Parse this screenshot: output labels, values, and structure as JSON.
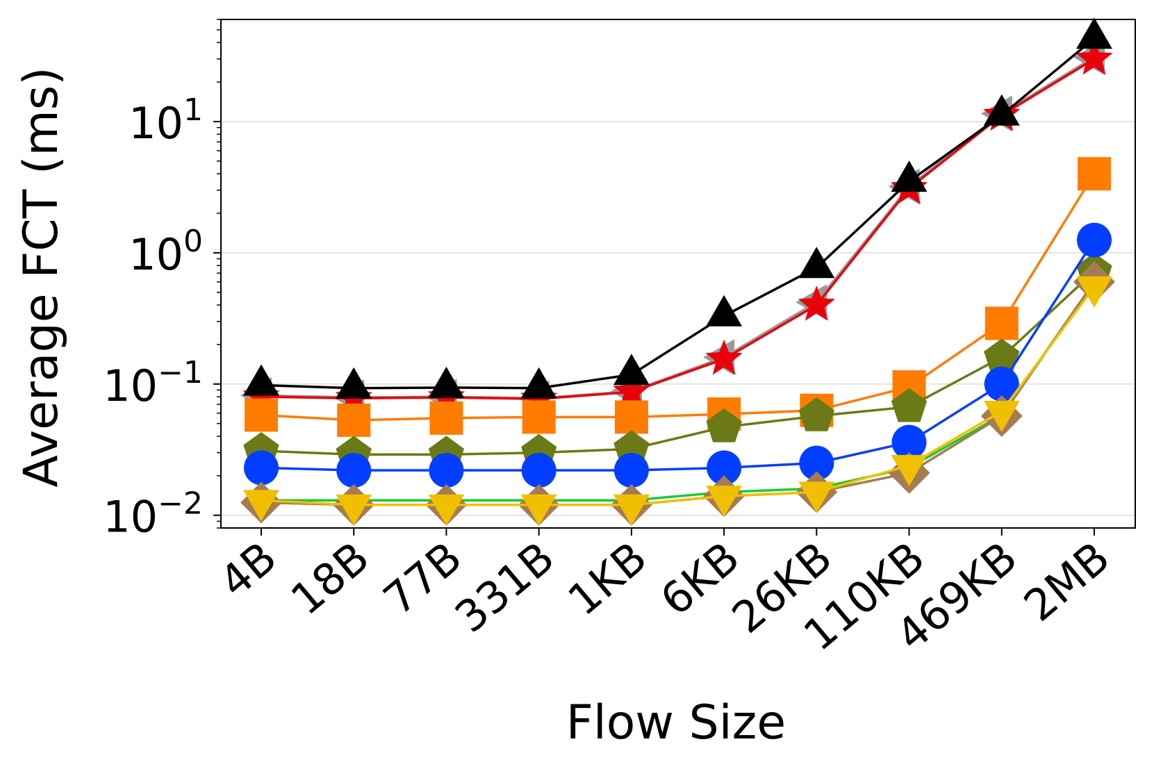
{
  "chart_data": {
    "type": "line",
    "title": "",
    "xlabel": "Flow Size",
    "ylabel": "Average FCT (ms)",
    "yscale": "log",
    "ylim": [
      0.008,
      60
    ],
    "ytick_base": "10",
    "yticks": [
      {
        "value": 0.01,
        "exp": "−2"
      },
      {
        "value": 0.1,
        "exp": "−1"
      },
      {
        "value": 1,
        "exp": "0"
      },
      {
        "value": 10,
        "exp": "1"
      }
    ],
    "grid": "horizontal",
    "legend": "none",
    "categories": [
      "4B",
      "18B",
      "77B",
      "331B",
      "1KB",
      "6KB",
      "26KB",
      "110KB",
      "469KB",
      "2MB"
    ],
    "series": [
      {
        "color": "#999999",
        "marker": "triangle-left",
        "values": [
          0.082,
          0.079,
          0.08,
          0.078,
          0.088,
          0.16,
          0.42,
          3.2,
          11.5,
          31
        ]
      },
      {
        "color": "#e8000b",
        "marker": "star",
        "values": [
          0.08,
          0.078,
          0.079,
          0.077,
          0.087,
          0.155,
          0.4,
          3.1,
          11.2,
          30
        ]
      },
      {
        "color": "#000000",
        "marker": "triangle-up",
        "values": [
          0.098,
          0.093,
          0.094,
          0.093,
          0.118,
          0.33,
          0.77,
          3.5,
          11.2,
          43
        ]
      },
      {
        "color": "#ff7c00",
        "marker": "square",
        "values": [
          0.058,
          0.053,
          0.055,
          0.056,
          0.056,
          0.059,
          0.063,
          0.095,
          0.29,
          4.0
        ]
      },
      {
        "color": "#6b7a17",
        "marker": "pentagon",
        "values": [
          0.031,
          0.029,
          0.029,
          0.03,
          0.032,
          0.047,
          0.057,
          0.067,
          0.16,
          0.72
        ]
      },
      {
        "color": "#023eff",
        "marker": "circle",
        "values": [
          0.023,
          0.022,
          0.022,
          0.022,
          0.022,
          0.023,
          0.025,
          0.036,
          0.1,
          1.25
        ]
      },
      {
        "color": "#1ac938",
        "marker": "x",
        "values": [
          0.013,
          0.013,
          0.013,
          0.013,
          0.013,
          0.015,
          0.016,
          0.023,
          0.058,
          0.6
        ]
      },
      {
        "color": "#a57c52",
        "marker": "diamond",
        "values": [
          0.0125,
          0.012,
          0.012,
          0.012,
          0.012,
          0.014,
          0.015,
          0.021,
          0.057,
          0.6
        ]
      },
      {
        "color": "#f0c000",
        "marker": "triangle-down",
        "values": [
          0.013,
          0.012,
          0.012,
          0.012,
          0.012,
          0.014,
          0.015,
          0.024,
          0.062,
          0.55
        ]
      }
    ]
  }
}
